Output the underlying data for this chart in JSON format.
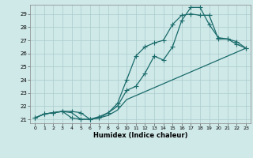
{
  "xlabel": "Humidex (Indice chaleur)",
  "bg_color": "#cfe8e8",
  "grid_color": "#aacccc",
  "line_color": "#1a6b6b",
  "xlim": [
    -0.5,
    23.5
  ],
  "ylim": [
    20.7,
    29.7
  ],
  "yticks": [
    21,
    22,
    23,
    24,
    25,
    26,
    27,
    28,
    29
  ],
  "xticks": [
    0,
    1,
    2,
    3,
    4,
    5,
    6,
    7,
    8,
    9,
    10,
    11,
    12,
    13,
    14,
    15,
    16,
    17,
    18,
    19,
    20,
    21,
    22,
    23
  ],
  "line1_x": [
    0,
    1,
    2,
    3,
    4,
    5,
    6,
    7,
    8,
    9,
    10,
    11,
    12,
    13,
    14,
    15,
    16,
    17,
    18,
    19,
    20,
    21,
    22,
    23
  ],
  "line1_y": [
    21.1,
    21.4,
    21.5,
    21.6,
    21.6,
    21.5,
    21.0,
    21.1,
    21.5,
    22.0,
    23.2,
    23.5,
    24.5,
    25.8,
    25.5,
    26.5,
    28.5,
    29.5,
    29.5,
    28.2,
    27.2,
    27.1,
    26.9,
    26.4
  ],
  "line2_x": [
    0,
    1,
    2,
    3,
    4,
    5,
    6,
    7,
    8,
    9,
    10,
    11,
    12,
    13,
    14,
    15,
    16,
    17,
    18,
    19,
    20,
    21,
    22,
    23
  ],
  "line2_y": [
    21.1,
    21.4,
    21.5,
    21.6,
    21.1,
    21.0,
    21.0,
    21.2,
    21.5,
    22.2,
    24.0,
    25.8,
    26.5,
    26.8,
    27.0,
    28.2,
    28.9,
    29.0,
    28.9,
    28.9,
    27.1,
    27.1,
    26.7,
    26.4
  ],
  "line3_x": [
    0,
    1,
    2,
    3,
    4,
    5,
    6,
    7,
    8,
    9,
    10,
    23
  ],
  "line3_y": [
    21.1,
    21.4,
    21.5,
    21.6,
    21.5,
    21.0,
    21.0,
    21.1,
    21.3,
    21.7,
    22.5,
    26.4
  ]
}
